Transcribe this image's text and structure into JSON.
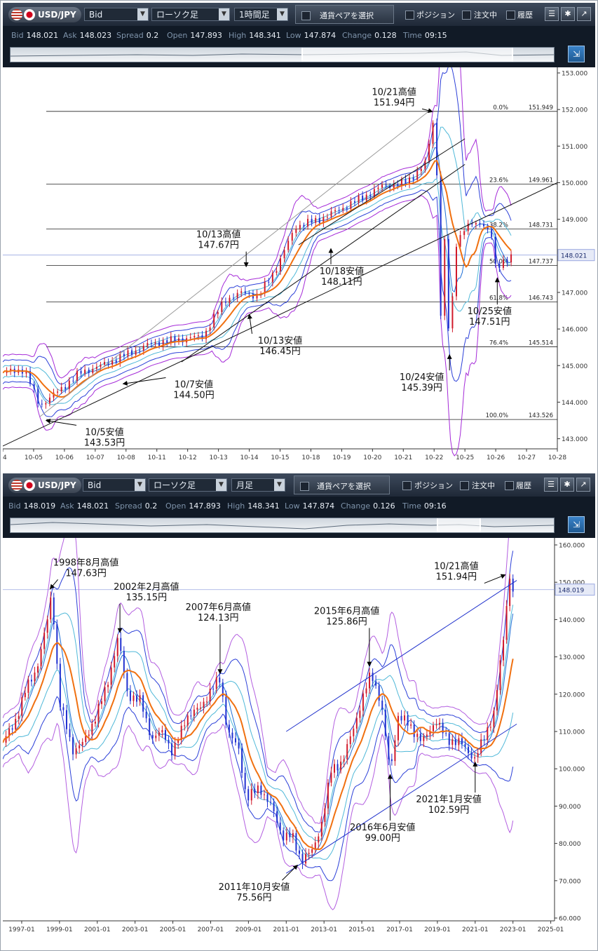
{
  "panels": [
    {
      "symbol": "USD/JPY",
      "price_type": "Bid",
      "chart_style": "ローソク足",
      "timeframe": "1時間足",
      "pair_select_label": "通貨ペアを選択",
      "checkboxes": [
        "ポジション",
        "注文中",
        "履歴"
      ],
      "info": {
        "bid_label": "Bid",
        "bid": "148.021",
        "ask_label": "Ask",
        "ask": "148.023",
        "spread_label": "Spread",
        "spread": "0.2",
        "open_label": "Open",
        "open": "147.893",
        "high_label": "High",
        "high": "148.341",
        "low_label": "Low",
        "low": "147.874",
        "change_label": "Change",
        "change": "0.128",
        "time_label": "Time",
        "time": "09:15"
      },
      "navigator_window": [
        0.535,
        0.92
      ]
    },
    {
      "symbol": "USD/JPY",
      "price_type": "Bid",
      "chart_style": "ローソク足",
      "timeframe": "月足",
      "pair_select_label": "通貨ペアを選択",
      "checkboxes": [
        "ポジション",
        "注文中",
        "履歴"
      ],
      "info": {
        "bid_label": "Bid",
        "bid": "148.019",
        "ask_label": "Ask",
        "ask": "148.021",
        "spread_label": "Spread",
        "spread": "0.2",
        "open_label": "Open",
        "open": "147.893",
        "high_label": "High",
        "high": "148.341",
        "low_label": "Low",
        "low": "147.874",
        "change_label": "Change",
        "change": "0.126",
        "time_label": "Time",
        "time": "09:16"
      },
      "navigator_window": [
        0.785,
        0.86
      ]
    }
  ],
  "chart_data": [
    {
      "type": "line",
      "x_range": [
        0,
        18
      ],
      "ylim": [
        142.8,
        153.0
      ],
      "x_tick_labels": [
        {
          "x": 0,
          "label": "04"
        },
        {
          "x": 1,
          "label": "10-05"
        },
        {
          "x": 2,
          "label": "10-06"
        },
        {
          "x": 3,
          "label": "10-07"
        },
        {
          "x": 4,
          "label": "10-08"
        },
        {
          "x": 5,
          "label": "10-11"
        },
        {
          "x": 6,
          "label": "10-12"
        },
        {
          "x": 7,
          "label": "10-13"
        },
        {
          "x": 8,
          "label": "10-14"
        },
        {
          "x": 9,
          "label": "10-15"
        },
        {
          "x": 10,
          "label": "10-18"
        },
        {
          "x": 11,
          "label": "10-19"
        },
        {
          "x": 12,
          "label": "10-20"
        },
        {
          "x": 13,
          "label": "10-21"
        },
        {
          "x": 14,
          "label": "10-22"
        },
        {
          "x": 15,
          "label": "10-25"
        },
        {
          "x": 16,
          "label": "10-26"
        },
        {
          "x": 17,
          "label": "10-27"
        },
        {
          "x": 18,
          "label": "10-28"
        }
      ],
      "y_ticks": [
        "143.000",
        "144.000",
        "145.000",
        "146.000",
        "147.000",
        "148.000",
        "149.000",
        "150.000",
        "151.000",
        "152.000",
        "153.000"
      ],
      "y_tick_values": [
        143,
        144,
        145,
        146,
        147,
        148,
        149,
        150,
        151,
        152,
        153
      ],
      "current_price": {
        "value": 148.021,
        "label": "148.021"
      },
      "price_path": [
        [
          0,
          144.8
        ],
        [
          0.7,
          144.9
        ],
        [
          1.2,
          143.9
        ],
        [
          1.8,
          144.3
        ],
        [
          2.5,
          144.8
        ],
        [
          3.2,
          145.0
        ],
        [
          4.0,
          145.3
        ],
        [
          4.8,
          145.6
        ],
        [
          5.6,
          145.7
        ],
        [
          6.5,
          145.8
        ],
        [
          7.2,
          146.8
        ],
        [
          7.8,
          147.0
        ],
        [
          8.3,
          146.9
        ],
        [
          8.9,
          147.7
        ],
        [
          9.5,
          148.8
        ],
        [
          10.3,
          149.0
        ],
        [
          11.0,
          149.3
        ],
        [
          11.7,
          149.6
        ],
        [
          12.3,
          149.9
        ],
        [
          13.1,
          150.0
        ],
        [
          13.7,
          150.5
        ],
        [
          13.9,
          151.3
        ],
        [
          14.0,
          151.9
        ],
        [
          14.1,
          150.0
        ],
        [
          14.2,
          146.2
        ],
        [
          14.35,
          148.5
        ],
        [
          14.5,
          145.4
        ],
        [
          14.7,
          148.3
        ],
        [
          15.0,
          148.8
        ],
        [
          15.6,
          148.9
        ],
        [
          15.9,
          148.5
        ],
        [
          16.0,
          147.6
        ],
        [
          16.3,
          147.9
        ],
        [
          16.5,
          148.0
        ]
      ],
      "fibonacci": [
        {
          "label": "0.0%",
          "value": 151.949,
          "text": "151.949"
        },
        {
          "label": "23.6%",
          "value": 149.961,
          "text": "149.961"
        },
        {
          "label": "38.2%",
          "value": 148.731,
          "text": "148.731"
        },
        {
          "label": "50.0%",
          "value": 147.737,
          "text": "147.737"
        },
        {
          "label": "61.8%",
          "value": 146.743,
          "text": "146.743"
        },
        {
          "label": "76.4%",
          "value": 145.514,
          "text": "145.514"
        },
        {
          "label": "100.0%",
          "value": 143.526,
          "text": "143.526"
        }
      ],
      "trend_lines": [
        {
          "from": [
            0,
            142.8
          ],
          "to": [
            18,
            150.0
          ],
          "color": "#111111"
        },
        {
          "from": [
            5.8,
            145.1
          ],
          "to": [
            15.0,
            150.5
          ],
          "color": "#111111"
        },
        {
          "from": [
            9.6,
            148.3
          ],
          "to": [
            15.0,
            151.2
          ],
          "color": "#111111"
        },
        {
          "from": [
            1.2,
            143.6
          ],
          "to": [
            13.9,
            152.0
          ],
          "color": "#9a9a9a"
        }
      ],
      "annotations": [
        {
          "lines": [
            "10/21高値",
            "151.94円"
          ],
          "x": 12.7,
          "y": 152.4,
          "ax": 13.95,
          "ay": 151.94
        },
        {
          "lines": [
            "10/13高値",
            "147.67円"
          ],
          "x": 7.0,
          "y": 148.5,
          "ax": 7.9,
          "ay": 147.7
        },
        {
          "lines": [
            "10/18安値",
            "148.11円"
          ],
          "x": 11.0,
          "y": 147.5,
          "ax": 10.65,
          "ay": 148.2
        },
        {
          "lines": [
            "10/13安値",
            "146.45円"
          ],
          "x": 9.0,
          "y": 145.6,
          "ax": 8.0,
          "ay": 146.4
        },
        {
          "lines": [
            "10/7安値",
            "144.50円"
          ],
          "x": 6.2,
          "y": 144.4,
          "ax": 3.9,
          "ay": 144.5
        },
        {
          "lines": [
            "10/5安値",
            "143.53円"
          ],
          "x": 3.3,
          "y": 143.1,
          "ax": 1.4,
          "ay": 143.5
        },
        {
          "lines": [
            "10/25安値",
            "147.51円"
          ],
          "x": 15.8,
          "y": 146.4,
          "ax": 16.05,
          "ay": 147.4
        },
        {
          "lines": [
            "10/24安値",
            "145.39円"
          ],
          "x": 13.6,
          "y": 144.6,
          "ax": 14.5,
          "ay": 145.3
        }
      ]
    },
    {
      "type": "line",
      "x_range": [
        1996.0,
        2025.2
      ],
      "ylim": [
        60.0,
        160.0
      ],
      "x_tick_labels": [
        "1997-01",
        "1999-01",
        "2001-01",
        "2003-01",
        "2005-01",
        "2007-01",
        "2009-01",
        "2011-01",
        "2013-01",
        "2015-01",
        "2017-01",
        "2019-01",
        "2021-01",
        "2023-01",
        "2025-01"
      ],
      "x_tick_values": [
        1997,
        1999,
        2001,
        2003,
        2005,
        2007,
        2009,
        2011,
        2013,
        2015,
        2017,
        2019,
        2021,
        2023,
        2025
      ],
      "y_ticks": [
        "60.000",
        "70.000",
        "80.000",
        "90.000",
        "100.000",
        "110.000",
        "120.000",
        "130.000",
        "140.000",
        "150.000",
        "160.000"
      ],
      "y_tick_values": [
        60,
        70,
        80,
        90,
        100,
        110,
        120,
        130,
        140,
        150,
        160
      ],
      "current_price": {
        "value": 148.019,
        "label": "148.019"
      },
      "price_path": [
        [
          1996.0,
          107
        ],
        [
          1996.6,
          112
        ],
        [
          1997.2,
          121
        ],
        [
          1997.8,
          127
        ],
        [
          1998.3,
          138
        ],
        [
          1998.6,
          147.6
        ],
        [
          1999.0,
          118
        ],
        [
          1999.7,
          105
        ],
        [
          2000.3,
          107
        ],
        [
          2000.9,
          114
        ],
        [
          2001.5,
          122
        ],
        [
          2002.1,
          135.2
        ],
        [
          2002.6,
          120
        ],
        [
          2003.3,
          118
        ],
        [
          2003.9,
          108
        ],
        [
          2004.5,
          110
        ],
        [
          2005.0,
          104
        ],
        [
          2005.7,
          114
        ],
        [
          2006.4,
          116
        ],
        [
          2007.0,
          121
        ],
        [
          2007.5,
          124.1
        ],
        [
          2007.9,
          110
        ],
        [
          2008.5,
          105
        ],
        [
          2008.9,
          92
        ],
        [
          2009.6,
          95
        ],
        [
          2010.2,
          90
        ],
        [
          2010.8,
          82
        ],
        [
          2011.3,
          82
        ],
        [
          2011.8,
          75.6
        ],
        [
          2012.4,
          78
        ],
        [
          2012.9,
          86
        ],
        [
          2013.4,
          100
        ],
        [
          2014.0,
          102
        ],
        [
          2014.8,
          115
        ],
        [
          2015.5,
          125.9
        ],
        [
          2016.0,
          118
        ],
        [
          2016.5,
          99.0
        ],
        [
          2016.9,
          114
        ],
        [
          2017.5,
          112
        ],
        [
          2018.2,
          107
        ],
        [
          2018.9,
          113
        ],
        [
          2019.5,
          108
        ],
        [
          2020.2,
          107
        ],
        [
          2021.0,
          102.6
        ],
        [
          2021.6,
          110
        ],
        [
          2022.0,
          115
        ],
        [
          2022.5,
          135
        ],
        [
          2022.8,
          151.9
        ],
        [
          2023.0,
          148
        ]
      ],
      "channel_lines": [
        {
          "from": [
            2011.0,
            110
          ],
          "to": [
            2023.2,
            150.5
          ],
          "color": "#2233cc"
        },
        {
          "from": [
            2011.0,
            72
          ],
          "to": [
            2023.2,
            112
          ],
          "color": "#2233cc"
        }
      ],
      "annotations": [
        {
          "lines": [
            "1998年8月高値",
            "147.63円"
          ],
          "x": 2000.4,
          "y": 154.5,
          "ax": 1998.5,
          "ay": 148.2
        },
        {
          "lines": [
            "2002年2月高値",
            "135.15円"
          ],
          "x": 2003.6,
          "y": 148.0,
          "ax": 2002.2,
          "ay": 136.5
        },
        {
          "lines": [
            "2007年6月高値",
            "124.13円"
          ],
          "x": 2007.4,
          "y": 142.5,
          "ax": 2007.5,
          "ay": 125.5
        },
        {
          "lines": [
            "2015年6月高値",
            "125.86円"
          ],
          "x": 2014.2,
          "y": 141.5,
          "ax": 2015.4,
          "ay": 127.5
        },
        {
          "lines": [
            "10/21高値",
            "151.94円"
          ],
          "x": 2020.0,
          "y": 153.5,
          "ax": 2022.6,
          "ay": 152.0
        },
        {
          "lines": [
            "2016年6月安値",
            "99.00円"
          ],
          "x": 2016.1,
          "y": 83.5,
          "ax": 2016.5,
          "ay": 98.5
        },
        {
          "lines": [
            "2021年1月安値",
            "102.59円"
          ],
          "x": 2019.6,
          "y": 91.0,
          "ax": 2021.0,
          "ay": 101.8
        },
        {
          "lines": [
            "2011年10月安値",
            "75.56円"
          ],
          "x": 2009.3,
          "y": 67.5,
          "ax": 2011.6,
          "ay": 74.2
        }
      ]
    }
  ]
}
